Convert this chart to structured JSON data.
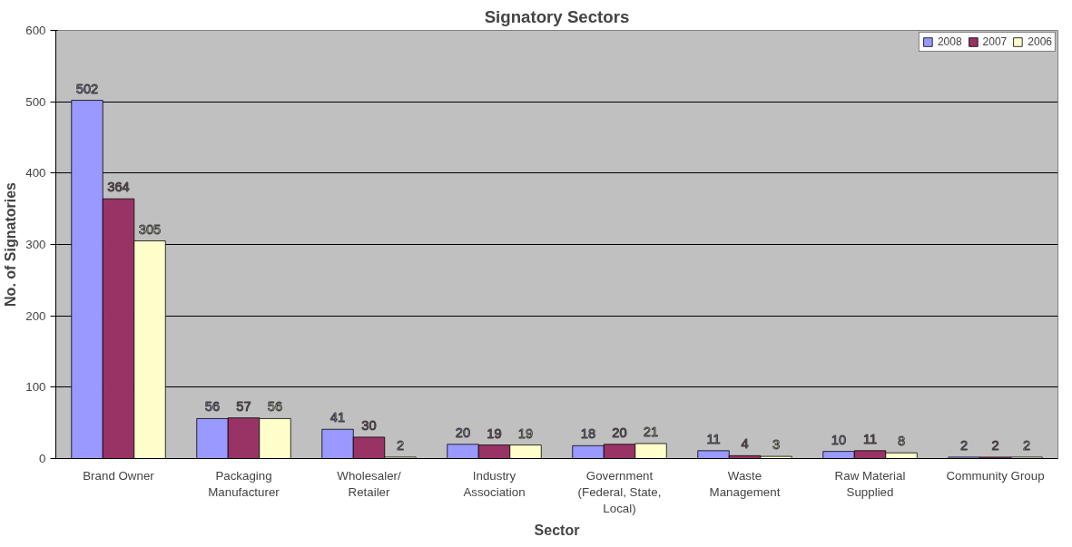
{
  "chart_data": {
    "type": "bar",
    "title": "Signatory Sectors",
    "xlabel": "Sector",
    "ylabel": "No. of Signatories",
    "categories": [
      "Brand Owner",
      "Packaging\nManufacturer",
      "Wholesaler/\nRetailer",
      "Industry\nAssociation",
      "Government\n(Federal, State,\nLocal)",
      "Waste\nManagement",
      "Raw Material\nSupplied",
      "Community Group"
    ],
    "series": [
      {
        "name": "2008",
        "color": "#9999ff",
        "values": [
          502,
          56,
          41,
          20,
          18,
          11,
          10,
          2
        ]
      },
      {
        "name": "2007",
        "color": "#993366",
        "values": [
          364,
          57,
          30,
          19,
          20,
          4,
          11,
          2
        ]
      },
      {
        "name": "2006",
        "color": "#ffffcc",
        "values": [
          305,
          56,
          2,
          19,
          21,
          3,
          8,
          2
        ]
      }
    ],
    "ylim": [
      0,
      600
    ],
    "yticks": [
      0,
      100,
      200,
      300,
      400,
      500,
      600
    ],
    "grid": "y",
    "legend": "top right",
    "data_labels": true
  }
}
